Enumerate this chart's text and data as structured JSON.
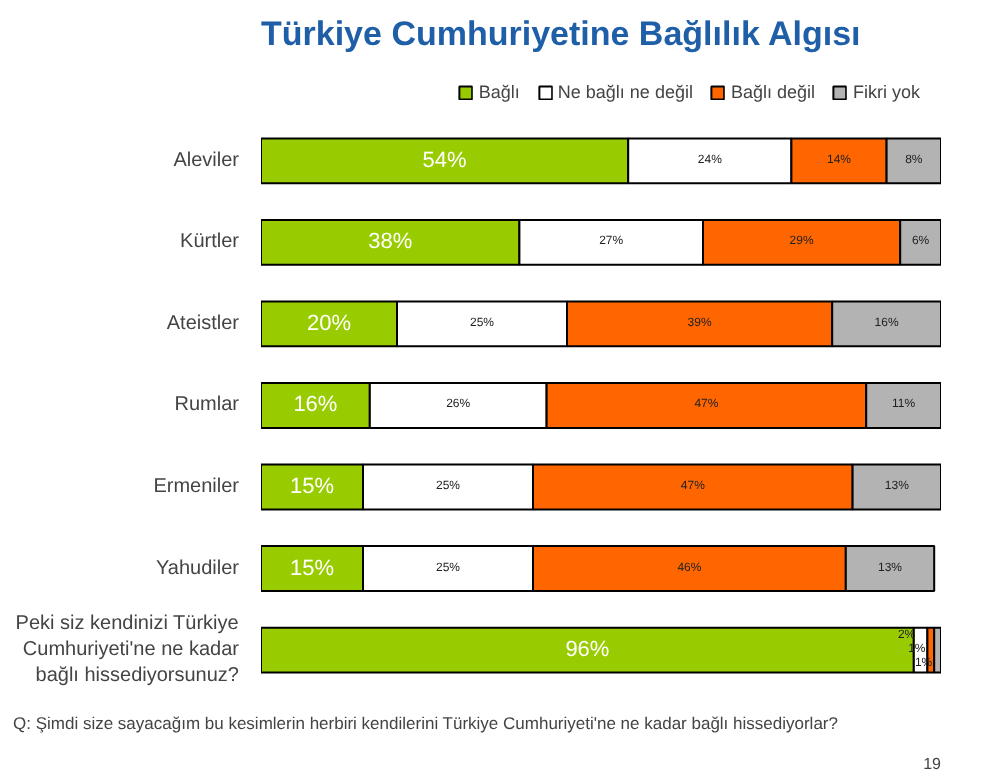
{
  "chart_data": {
    "type": "bar",
    "orientation": "horizontal",
    "stacked": true,
    "title": "Türkiye Cumhuriyetine Bağlılık Algısı",
    "categories": [
      "Aleviler",
      "Kürtler",
      "Ateistler",
      "Rumlar",
      "Ermeniler",
      "Yahudiler",
      "Peki siz kendinizi Türkiye Cumhuriyeti'ne ne kadar bağlı hissediyorsunuz?"
    ],
    "series": [
      {
        "name": "Bağlı",
        "color": "#99cc00",
        "values": [
          54,
          38,
          20,
          16,
          15,
          15,
          96
        ],
        "value_labels": [
          "54%",
          "38%",
          "20%",
          "16%",
          "15%",
          "15%",
          "96%"
        ]
      },
      {
        "name": "Ne bağlı ne değil",
        "color": "#ffffff",
        "values": [
          24,
          27,
          25,
          26,
          25,
          25,
          2
        ],
        "value_labels": [
          "24%",
          "27%",
          "25%",
          "26%",
          "25%",
          "25%",
          "2%"
        ]
      },
      {
        "name": "Bağlı değil",
        "color": "#ff6600",
        "values": [
          14,
          29,
          39,
          47,
          47,
          46,
          1
        ],
        "value_labels": [
          "14%",
          "29%",
          "39%",
          "47%",
          "47%",
          "46%",
          "1%"
        ]
      },
      {
        "name": "Fikri yok",
        "color": "#b3b3b3",
        "values": [
          8,
          6,
          16,
          11,
          13,
          13,
          1
        ],
        "value_labels": [
          "8%",
          "6%",
          "16%",
          "11%",
          "13%",
          "13%",
          "1%"
        ]
      }
    ],
    "xlim": [
      0,
      100
    ],
    "tick_labels": "y",
    "grid": false,
    "legend": "top",
    "annotations": [
      "19",
      "Q: Şimdi size sayacağım bu kesimlerin herbiri kendilerini Türkiye Cumhuriyeti'ne ne kadar bağlı hissediyorlar?"
    ]
  }
}
